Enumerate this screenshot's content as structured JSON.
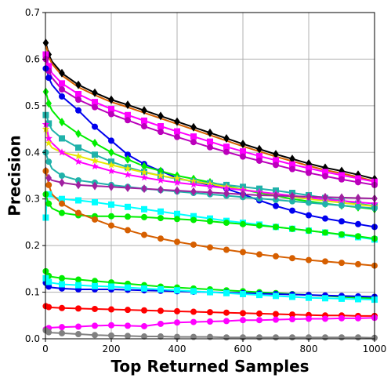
{
  "chart_data": {
    "type": "line",
    "title": "",
    "xlabel": "Top Returned Samples",
    "ylabel": "Precision",
    "xlim": [
      0,
      1000
    ],
    "ylim": [
      0,
      0.7
    ],
    "xticks": [
      0,
      200,
      400,
      600,
      800,
      1000
    ],
    "yticks": [
      0.0,
      0.1,
      0.2,
      0.3,
      0.4,
      0.5,
      0.6,
      0.7
    ],
    "xtick_labels": [
      "0",
      "200",
      "400",
      "600",
      "800",
      "1000"
    ],
    "ytick_labels": [
      "0.0",
      "0.1",
      "0.2",
      "0.3",
      "0.4",
      "0.5",
      "0.6",
      "0.7"
    ],
    "grid": true,
    "legend": "none",
    "x": [
      1,
      5,
      10,
      20,
      50,
      100,
      150,
      200,
      250,
      300,
      350,
      400,
      450,
      500,
      550,
      600,
      650,
      700,
      750,
      800,
      850,
      900,
      950,
      1000
    ],
    "series": [
      {
        "color": "#000000",
        "marker": "diamond",
        "values": [
          0.635,
          0.625,
          0.61,
          0.595,
          0.57,
          0.545,
          0.528,
          0.513,
          0.502,
          0.49,
          0.478,
          0.466,
          0.454,
          0.442,
          0.43,
          0.418,
          0.407,
          0.396,
          0.386,
          0.376,
          0.367,
          0.36,
          0.352,
          0.343
        ]
      },
      {
        "color": "#d65f00",
        "marker": "none",
        "values": [
          0.63,
          0.62,
          0.605,
          0.59,
          0.565,
          0.54,
          0.523,
          0.508,
          0.497,
          0.485,
          0.473,
          0.461,
          0.449,
          0.437,
          0.425,
          0.413,
          0.402,
          0.391,
          0.381,
          0.371,
          0.362,
          0.355,
          0.347,
          0.338
        ]
      },
      {
        "color": "#ff00ff",
        "marker": "square",
        "values": [
          0.61,
          0.6,
          0.585,
          0.57,
          0.548,
          0.525,
          0.508,
          0.493,
          0.48,
          0.468,
          0.456,
          0.445,
          0.434,
          0.423,
          0.412,
          0.402,
          0.392,
          0.383,
          0.374,
          0.366,
          0.358,
          0.351,
          0.344,
          0.337
        ]
      },
      {
        "color": "#bb00bb",
        "marker": "circle",
        "values": [
          0.6,
          0.59,
          0.575,
          0.56,
          0.535,
          0.513,
          0.497,
          0.482,
          0.469,
          0.456,
          0.444,
          0.433,
          0.422,
          0.411,
          0.401,
          0.391,
          0.382,
          0.373,
          0.364,
          0.356,
          0.349,
          0.342,
          0.336,
          0.33
        ]
      },
      {
        "color": "#0000ee",
        "marker": "circle",
        "values": [
          0.58,
          0.575,
          0.56,
          0.545,
          0.52,
          0.49,
          0.455,
          0.425,
          0.395,
          0.375,
          0.36,
          0.345,
          0.337,
          0.33,
          0.322,
          0.31,
          0.297,
          0.285,
          0.275,
          0.265,
          0.258,
          0.252,
          0.246,
          0.24
        ]
      },
      {
        "color": "#00ee00",
        "marker": "diamond",
        "values": [
          0.53,
          0.52,
          0.505,
          0.49,
          0.465,
          0.44,
          0.42,
          0.4,
          0.385,
          0.37,
          0.36,
          0.35,
          0.343,
          0.336,
          0.328,
          0.32,
          0.313,
          0.307,
          0.3,
          0.295,
          0.29,
          0.286,
          0.282,
          0.278
        ]
      },
      {
        "color": "#20b2aa",
        "marker": "square",
        "values": [
          0.48,
          0.475,
          0.462,
          0.448,
          0.43,
          0.41,
          0.395,
          0.38,
          0.368,
          0.358,
          0.35,
          0.343,
          0.338,
          0.334,
          0.33,
          0.326,
          0.322,
          0.318,
          0.313,
          0.308,
          0.302,
          0.297,
          0.29,
          0.285
        ]
      },
      {
        "color": "#e8e800",
        "marker": "star",
        "values": [
          0.45,
          0.44,
          0.42,
          0.41,
          0.4,
          0.392,
          0.382,
          0.373,
          0.365,
          0.357,
          0.35,
          0.344,
          0.338,
          0.332,
          0.326,
          0.32,
          0.315,
          0.31,
          0.305,
          0.3,
          0.296,
          0.292,
          0.288,
          0.284
        ]
      },
      {
        "color": "#ff00ff",
        "marker": "star",
        "values": [
          0.46,
          0.45,
          0.43,
          0.42,
          0.4,
          0.38,
          0.37,
          0.36,
          0.352,
          0.346,
          0.34,
          0.335,
          0.331,
          0.327,
          0.323,
          0.319,
          0.315,
          0.311,
          0.307,
          0.303,
          0.299,
          0.296,
          0.293,
          0.29
        ]
      },
      {
        "color": "#20b2aa",
        "marker": "circle",
        "values": [
          0.4,
          0.39,
          0.38,
          0.365,
          0.35,
          0.34,
          0.335,
          0.33,
          0.326,
          0.322,
          0.319,
          0.316,
          0.313,
          0.31,
          0.307,
          0.304,
          0.301,
          0.298,
          0.295,
          0.292,
          0.289,
          0.286,
          0.283,
          0.28
        ]
      },
      {
        "color": "#a020a0",
        "marker": "diamond",
        "values": [
          0.36,
          0.35,
          0.345,
          0.34,
          0.335,
          0.33,
          0.328,
          0.326,
          0.324,
          0.322,
          0.32,
          0.318,
          0.316,
          0.314,
          0.312,
          0.31,
          0.308,
          0.307,
          0.306,
          0.305,
          0.304,
          0.303,
          0.302,
          0.301
        ]
      },
      {
        "color": "#00ffff",
        "marker": "square",
        "values": [
          0.26,
          0.31,
          0.31,
          0.305,
          0.3,
          0.297,
          0.293,
          0.288,
          0.283,
          0.278,
          0.273,
          0.268,
          0.263,
          0.258,
          0.253,
          0.249,
          0.245,
          0.24,
          0.236,
          0.232,
          0.228,
          0.223,
          0.218,
          0.213
        ]
      },
      {
        "color": "#00ee00",
        "marker": "circle",
        "values": [
          0.31,
          0.3,
          0.29,
          0.28,
          0.27,
          0.265,
          0.263,
          0.263,
          0.262,
          0.261,
          0.259,
          0.257,
          0.255,
          0.252,
          0.249,
          0.246,
          0.243,
          0.24,
          0.236,
          0.232,
          0.228,
          0.224,
          0.22,
          0.215
        ]
      },
      {
        "color": "#d65f00",
        "marker": "circle",
        "values": [
          0.36,
          0.35,
          0.33,
          0.31,
          0.29,
          0.27,
          0.256,
          0.243,
          0.233,
          0.223,
          0.215,
          0.208,
          0.202,
          0.196,
          0.191,
          0.186,
          0.181,
          0.177,
          0.173,
          0.169,
          0.166,
          0.163,
          0.16,
          0.157
        ]
      },
      {
        "color": "#00ee00",
        "marker": "circle",
        "values": [
          0.145,
          0.14,
          0.135,
          0.133,
          0.13,
          0.127,
          0.124,
          0.121,
          0.118,
          0.115,
          0.112,
          0.11,
          0.108,
          0.106,
          0.104,
          0.102,
          0.1,
          0.098,
          0.096,
          0.094,
          0.092,
          0.09,
          0.088,
          0.087
        ]
      },
      {
        "color": "#0000ee",
        "marker": "circle",
        "values": [
          0.12,
          0.115,
          0.112,
          0.11,
          0.108,
          0.106,
          0.106,
          0.106,
          0.105,
          0.104,
          0.103,
          0.102,
          0.101,
          0.1,
          0.099,
          0.098,
          0.097,
          0.096,
          0.095,
          0.094,
          0.093,
          0.092,
          0.091,
          0.09
        ]
      },
      {
        "color": "#00ffff",
        "marker": "square",
        "values": [
          0.13,
          0.125,
          0.122,
          0.12,
          0.117,
          0.115,
          0.113,
          0.112,
          0.11,
          0.108,
          0.106,
          0.104,
          0.102,
          0.1,
          0.098,
          0.096,
          0.094,
          0.092,
          0.09,
          0.088,
          0.087,
          0.086,
          0.085,
          0.084
        ]
      },
      {
        "color": "#ff0000",
        "marker": "circle",
        "values": [
          0.07,
          0.069,
          0.068,
          0.067,
          0.066,
          0.065,
          0.064,
          0.063,
          0.062,
          0.061,
          0.06,
          0.059,
          0.058,
          0.057,
          0.056,
          0.055,
          0.054,
          0.053,
          0.052,
          0.051,
          0.05,
          0.05,
          0.049,
          0.049
        ]
      },
      {
        "color": "#ff00ff",
        "marker": "circle",
        "values": [
          0.02,
          0.022,
          0.023,
          0.024,
          0.025,
          0.026,
          0.028,
          0.029,
          0.028,
          0.027,
          0.032,
          0.035,
          0.036,
          0.037,
          0.038,
          0.04,
          0.04,
          0.041,
          0.042,
          0.043,
          0.043,
          0.044,
          0.044,
          0.045
        ]
      },
      {
        "color": "#808080",
        "marker": "circle",
        "values": [
          0.018,
          0.016,
          0.014,
          0.013,
          0.012,
          0.01,
          0.008,
          0.007,
          0.006,
          0.005,
          0.005,
          0.004,
          0.004,
          0.004,
          0.003,
          0.003,
          0.003,
          0.003,
          0.003,
          0.003,
          0.003,
          0.003,
          0.003,
          0.002
        ]
      }
    ]
  }
}
